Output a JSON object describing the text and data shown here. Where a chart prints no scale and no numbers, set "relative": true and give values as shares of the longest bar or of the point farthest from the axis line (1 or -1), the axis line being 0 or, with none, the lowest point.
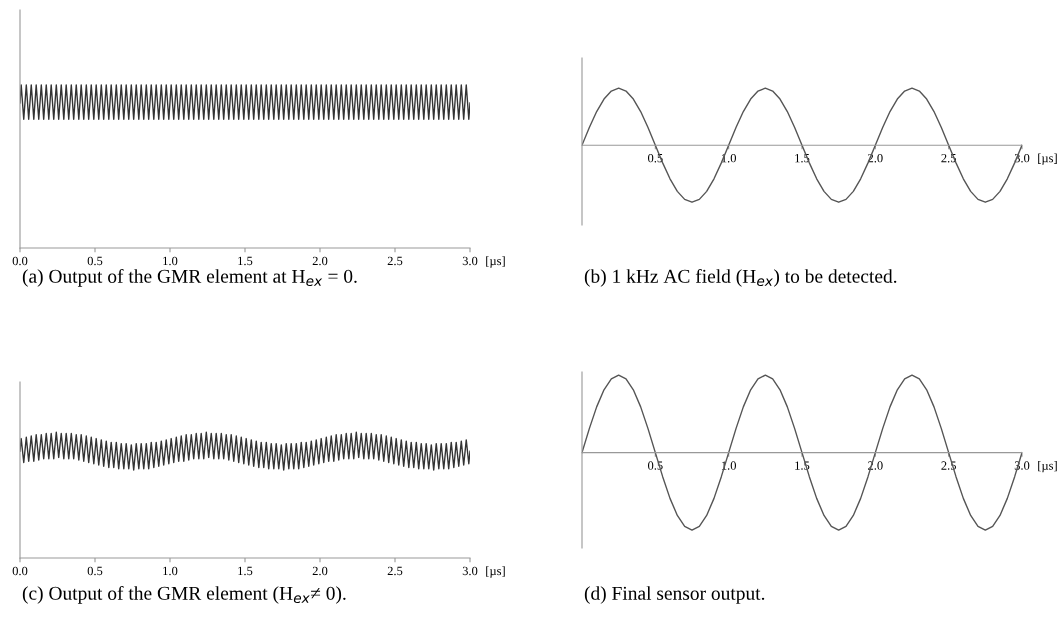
{
  "chart_data": [
    {
      "type": "line",
      "title": "(a) Output of the GMR element at H$_{ex}$ = 0.",
      "xlabel": "[µs]",
      "relative": true,
      "tick_labels": "x",
      "grid": false,
      "legend": false,
      "xlim": [
        0,
        3
      ],
      "xticks": [
        {
          "value": 0,
          "label": "0.0"
        },
        0.5,
        {
          "value": 1,
          "label": "1.0"
        },
        1.5,
        {
          "value": 2,
          "label": "2.0"
        },
        2.5,
        {
          "value": 3,
          "label": "3.0"
        }
      ],
      "x": [
        0,
        0.008,
        0.025,
        0.042,
        0.058,
        0.075,
        0.092,
        0.108,
        0.125,
        0.142,
        0.158,
        0.175,
        0.192,
        0.208,
        0.225,
        0.242,
        0.258,
        0.275,
        0.292,
        0.308,
        0.325,
        0.342,
        0.358,
        0.375,
        0.392,
        0.408,
        0.425,
        0.442,
        0.458,
        0.475,
        0.492,
        0.508,
        0.525,
        0.542,
        0.558,
        0.575,
        0.592,
        0.608,
        0.625,
        0.642,
        0.658,
        0.675,
        0.692,
        0.708,
        0.725,
        0.742,
        0.758,
        0.775,
        0.792,
        0.808,
        0.825,
        0.842,
        0.858,
        0.875,
        0.892,
        0.908,
        0.925,
        0.942,
        0.958,
        0.975,
        0.992,
        1.008,
        1.025,
        1.042,
        1.058,
        1.075,
        1.092,
        1.108,
        1.125,
        1.142,
        1.158,
        1.175,
        1.192,
        1.208,
        1.225,
        1.242,
        1.258,
        1.275,
        1.292,
        1.308,
        1.325,
        1.342,
        1.358,
        1.375,
        1.392,
        1.408,
        1.425,
        1.442,
        1.458,
        1.475,
        1.492,
        1.508,
        1.525,
        1.542,
        1.558,
        1.575,
        1.592,
        1.608,
        1.625,
        1.642,
        1.658,
        1.675,
        1.692,
        1.708,
        1.725,
        1.742,
        1.758,
        1.775,
        1.792,
        1.808,
        1.825,
        1.842,
        1.858,
        1.875,
        1.892,
        1.908,
        1.925,
        1.942,
        1.958,
        1.975,
        1.992,
        2.008,
        2.025,
        2.042,
        2.058,
        2.075,
        2.092,
        2.108,
        2.125,
        2.142,
        2.158,
        2.175,
        2.192,
        2.208,
        2.225,
        2.242,
        2.258,
        2.275,
        2.292,
        2.308,
        2.325,
        2.342,
        2.358,
        2.375,
        2.392,
        2.408,
        2.425,
        2.442,
        2.458,
        2.475,
        2.492,
        2.508,
        2.525,
        2.542,
        2.558,
        2.575,
        2.592,
        2.608,
        2.625,
        2.642,
        2.658,
        2.675,
        2.692,
        2.708,
        2.725,
        2.742,
        2.758,
        2.775,
        2.792,
        2.808,
        2.825,
        2.842,
        2.858,
        2.875,
        2.892,
        2.908,
        2.925,
        2.942,
        2.958,
        2.975,
        2.992,
        3
      ],
      "series": [
        {
          "color": "#333333",
          "values": [
            0.89,
            1,
            0.79,
            1,
            0.79,
            1,
            0.79,
            1,
            0.79,
            1,
            0.79,
            1,
            0.79,
            1,
            0.79,
            1,
            0.79,
            1,
            0.79,
            1,
            0.79,
            1,
            0.79,
            1,
            0.79,
            1,
            0.79,
            1,
            0.79,
            1,
            0.79,
            1,
            0.79,
            1,
            0.79,
            1,
            0.79,
            1,
            0.79,
            1,
            0.79,
            1,
            0.79,
            1,
            0.79,
            1,
            0.79,
            1,
            0.79,
            1,
            0.79,
            1,
            0.79,
            1,
            0.79,
            1,
            0.79,
            1,
            0.79,
            1,
            0.79,
            1,
            0.79,
            1,
            0.79,
            1,
            0.79,
            1,
            0.79,
            1,
            0.79,
            1,
            0.79,
            1,
            0.79,
            1,
            0.79,
            1,
            0.79,
            1,
            0.79,
            1,
            0.79,
            1,
            0.79,
            1,
            0.79,
            1,
            0.79,
            1,
            0.79,
            1,
            0.79,
            1,
            0.79,
            1,
            0.79,
            1,
            0.79,
            1,
            0.79,
            1,
            0.79,
            1,
            0.79,
            1,
            0.79,
            1,
            0.79,
            1,
            0.79,
            1,
            0.79,
            1,
            0.79,
            1,
            0.79,
            1,
            0.79,
            1,
            0.79,
            1,
            0.79,
            1,
            0.79,
            1,
            0.79,
            1,
            0.79,
            1,
            0.79,
            1,
            0.79,
            1,
            0.79,
            1,
            0.79,
            1,
            0.79,
            1,
            0.79,
            1,
            0.79,
            1,
            0.79,
            1,
            0.79,
            1,
            0.79,
            1,
            0.79,
            1,
            0.79,
            1,
            0.79,
            1,
            0.79,
            1,
            0.79,
            1,
            0.79,
            1,
            0.79,
            1,
            0.79,
            1,
            0.79,
            1,
            0.79,
            1,
            0.79,
            1,
            0.79,
            1,
            0.79,
            1,
            0.79,
            1,
            0.79,
            1,
            0.79,
            0.89
          ]
        }
      ]
    },
    {
      "type": "line",
      "title": "(b) 1 kHz AC field (H$_{ex}$) to be detected.",
      "xlabel": "[µs]",
      "relative": true,
      "tick_labels": "x",
      "grid": false,
      "legend": false,
      "xlim": [
        0,
        3
      ],
      "xticks": [
        0.5,
        {
          "value": 1,
          "label": "1.0"
        },
        1.5,
        {
          "value": 2,
          "label": "2.0"
        },
        2.5,
        {
          "value": 3,
          "label": "3.0"
        }
      ],
      "x": [
        0,
        0.05,
        0.1,
        0.15,
        0.2,
        0.25,
        0.3,
        0.35,
        0.4,
        0.45,
        0.5,
        0.55,
        0.6,
        0.65,
        0.7,
        0.75,
        0.8,
        0.85,
        0.9,
        0.95,
        1,
        1.05,
        1.1,
        1.15,
        1.2,
        1.25,
        1.3,
        1.35,
        1.4,
        1.45,
        1.5,
        1.55,
        1.6,
        1.65,
        1.7,
        1.75,
        1.8,
        1.85,
        1.9,
        1.95,
        2,
        2.05,
        2.1,
        2.15,
        2.2,
        2.25,
        2.3,
        2.35,
        2.4,
        2.45,
        2.5,
        2.55,
        2.6,
        2.65,
        2.7,
        2.75,
        2.8,
        2.85,
        2.9,
        2.95,
        3
      ],
      "series": [
        {
          "color": "#555555",
          "values": [
            0,
            0.31,
            0.59,
            0.81,
            0.95,
            1,
            0.95,
            0.81,
            0.59,
            0.31,
            0,
            -0.31,
            -0.59,
            -0.81,
            -0.95,
            -1,
            -0.95,
            -0.81,
            -0.59,
            -0.31,
            0,
            0.31,
            0.59,
            0.81,
            0.95,
            1,
            0.95,
            0.81,
            0.59,
            0.31,
            0,
            -0.31,
            -0.59,
            -0.81,
            -0.95,
            -1,
            -0.95,
            -0.81,
            -0.59,
            -0.31,
            0,
            0.31,
            0.59,
            0.81,
            0.95,
            1,
            0.95,
            0.81,
            0.59,
            0.31,
            0,
            -0.31,
            -0.59,
            -0.81,
            -0.95,
            -1,
            -0.95,
            -0.81,
            -0.59,
            -0.31,
            0
          ]
        }
      ]
    },
    {
      "type": "line",
      "title": "(c) Output of the GMR element (H$_{ex}$≠ 0).",
      "xlabel": "[µs]",
      "relative": true,
      "tick_labels": "x",
      "grid": false,
      "legend": false,
      "xlim": [
        0,
        3
      ],
      "xticks": [
        {
          "value": 0,
          "label": "0.0"
        },
        0.5,
        {
          "value": 1,
          "label": "1.0"
        },
        1.5,
        {
          "value": 2,
          "label": "2.0"
        },
        2.5,
        {
          "value": 3,
          "label": "3.0"
        }
      ],
      "x": [
        0,
        0.008,
        0.025,
        0.042,
        0.058,
        0.075,
        0.092,
        0.108,
        0.125,
        0.142,
        0.158,
        0.175,
        0.192,
        0.208,
        0.225,
        0.242,
        0.258,
        0.275,
        0.292,
        0.308,
        0.325,
        0.342,
        0.358,
        0.375,
        0.392,
        0.408,
        0.425,
        0.442,
        0.458,
        0.475,
        0.492,
        0.508,
        0.525,
        0.542,
        0.558,
        0.575,
        0.592,
        0.608,
        0.625,
        0.642,
        0.658,
        0.675,
        0.692,
        0.708,
        0.725,
        0.742,
        0.758,
        0.775,
        0.792,
        0.808,
        0.825,
        0.842,
        0.858,
        0.875,
        0.892,
        0.908,
        0.925,
        0.942,
        0.958,
        0.975,
        0.992,
        1.008,
        1.025,
        1.042,
        1.058,
        1.075,
        1.092,
        1.108,
        1.125,
        1.142,
        1.158,
        1.175,
        1.192,
        1.208,
        1.225,
        1.242,
        1.258,
        1.275,
        1.292,
        1.308,
        1.325,
        1.342,
        1.358,
        1.375,
        1.392,
        1.408,
        1.425,
        1.442,
        1.458,
        1.475,
        1.492,
        1.508,
        1.525,
        1.542,
        1.558,
        1.575,
        1.592,
        1.608,
        1.625,
        1.642,
        1.658,
        1.675,
        1.692,
        1.708,
        1.725,
        1.742,
        1.758,
        1.775,
        1.792,
        1.808,
        1.825,
        1.842,
        1.858,
        1.875,
        1.892,
        1.908,
        1.925,
        1.942,
        1.958,
        1.975,
        1.992,
        2.008,
        2.025,
        2.042,
        2.058,
        2.075,
        2.092,
        2.108,
        2.125,
        2.142,
        2.158,
        2.175,
        2.192,
        2.208,
        2.225,
        2.242,
        2.258,
        2.275,
        2.292,
        2.308,
        2.325,
        2.342,
        2.358,
        2.375,
        2.392,
        2.408,
        2.425,
        2.442,
        2.458,
        2.475,
        2.492,
        2.508,
        2.525,
        2.542,
        2.558,
        2.575,
        2.592,
        2.608,
        2.625,
        2.642,
        2.658,
        2.675,
        2.692,
        2.708,
        2.725,
        2.742,
        2.758,
        2.775,
        2.792,
        2.808,
        2.825,
        2.842,
        2.858,
        2.875,
        2.892,
        2.908,
        2.925,
        2.942,
        2.958,
        2.975,
        2.992,
        3
      ],
      "series": [
        {
          "color": "#333333",
          "values": [
            0.85,
            0.95,
            0.76,
            0.96,
            0.77,
            0.97,
            0.77,
            0.98,
            0.78,
            0.98,
            0.79,
            0.99,
            0.79,
            0.99,
            0.79,
            1,
            0.8,
            0.99,
            0.79,
            0.99,
            0.79,
            0.99,
            0.79,
            0.98,
            0.78,
            0.98,
            0.77,
            0.97,
            0.76,
            0.96,
            0.75,
            0.95,
            0.74,
            0.94,
            0.73,
            0.93,
            0.72,
            0.92,
            0.72,
            0.92,
            0.71,
            0.91,
            0.71,
            0.91,
            0.71,
            0.9,
            0.7,
            0.91,
            0.71,
            0.91,
            0.71,
            0.91,
            0.71,
            0.92,
            0.72,
            0.92,
            0.73,
            0.93,
            0.74,
            0.94,
            0.75,
            0.95,
            0.76,
            0.96,
            0.77,
            0.97,
            0.77,
            0.98,
            0.78,
            0.98,
            0.79,
            0.99,
            0.79,
            0.99,
            0.79,
            1,
            0.8,
            0.99,
            0.79,
            0.99,
            0.79,
            0.99,
            0.79,
            0.98,
            0.78,
            0.98,
            0.77,
            0.97,
            0.76,
            0.96,
            0.75,
            0.95,
            0.74,
            0.94,
            0.73,
            0.93,
            0.72,
            0.92,
            0.72,
            0.92,
            0.71,
            0.91,
            0.71,
            0.91,
            0.71,
            0.9,
            0.7,
            0.91,
            0.71,
            0.91,
            0.71,
            0.91,
            0.71,
            0.92,
            0.72,
            0.92,
            0.73,
            0.93,
            0.74,
            0.94,
            0.75,
            0.95,
            0.76,
            0.96,
            0.77,
            0.97,
            0.77,
            0.98,
            0.78,
            0.98,
            0.79,
            0.99,
            0.79,
            0.99,
            0.79,
            1,
            0.8,
            0.99,
            0.79,
            0.99,
            0.79,
            0.99,
            0.79,
            0.98,
            0.78,
            0.98,
            0.77,
            0.97,
            0.76,
            0.96,
            0.75,
            0.95,
            0.74,
            0.94,
            0.73,
            0.93,
            0.72,
            0.92,
            0.72,
            0.92,
            0.71,
            0.91,
            0.71,
            0.91,
            0.71,
            0.9,
            0.7,
            0.91,
            0.71,
            0.91,
            0.71,
            0.91,
            0.71,
            0.92,
            0.72,
            0.92,
            0.73,
            0.93,
            0.74,
            0.94,
            0.75,
            0.85
          ]
        }
      ]
    },
    {
      "type": "line",
      "title": "(d) Final sensor output.",
      "xlabel": "[µs]",
      "relative": true,
      "tick_labels": "x",
      "grid": false,
      "legend": false,
      "xlim": [
        0,
        3
      ],
      "xticks": [
        0.5,
        {
          "value": 1,
          "label": "1.0"
        },
        1.5,
        {
          "value": 2,
          "label": "2.0"
        },
        2.5,
        {
          "value": 3,
          "label": "3.0"
        }
      ],
      "x": [
        0,
        0.05,
        0.1,
        0.15,
        0.2,
        0.25,
        0.3,
        0.35,
        0.4,
        0.45,
        0.5,
        0.55,
        0.6,
        0.65,
        0.7,
        0.75,
        0.8,
        0.85,
        0.9,
        0.95,
        1,
        1.05,
        1.1,
        1.15,
        1.2,
        1.25,
        1.3,
        1.35,
        1.4,
        1.45,
        1.5,
        1.55,
        1.6,
        1.65,
        1.7,
        1.75,
        1.8,
        1.85,
        1.9,
        1.95,
        2,
        2.05,
        2.1,
        2.15,
        2.2,
        2.25,
        2.3,
        2.35,
        2.4,
        2.45,
        2.5,
        2.55,
        2.6,
        2.65,
        2.7,
        2.75,
        2.8,
        2.85,
        2.9,
        2.95,
        3
      ],
      "series": [
        {
          "color": "#555555",
          "values": [
            0,
            0.31,
            0.59,
            0.81,
            0.95,
            1,
            0.95,
            0.81,
            0.59,
            0.31,
            0,
            -0.31,
            -0.59,
            -0.81,
            -0.95,
            -1,
            -0.95,
            -0.81,
            -0.59,
            -0.31,
            0,
            0.31,
            0.59,
            0.81,
            0.95,
            1,
            0.95,
            0.81,
            0.59,
            0.31,
            0,
            -0.31,
            -0.59,
            -0.81,
            -0.95,
            -1,
            -0.95,
            -0.81,
            -0.59,
            -0.31,
            0,
            0.31,
            0.59,
            0.81,
            0.95,
            1,
            0.95,
            0.81,
            0.59,
            0.31,
            0,
            -0.31,
            -0.59,
            -0.81,
            -0.95,
            -1,
            -0.95,
            -0.81,
            -0.59,
            -0.31,
            0
          ]
        }
      ]
    }
  ]
}
